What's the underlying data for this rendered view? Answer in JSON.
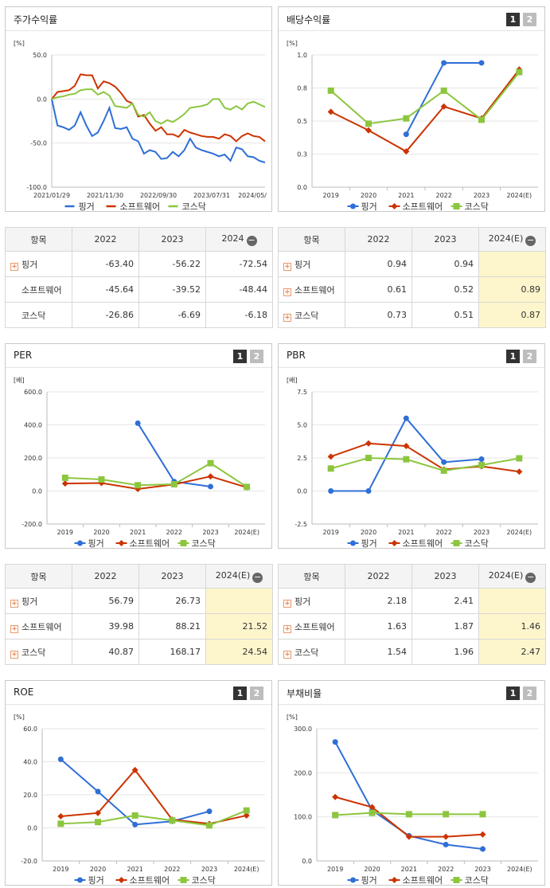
{
  "colors": {
    "pinger": "#2f6fd6",
    "software": "#cc3300",
    "kosdaq": "#8cc63f"
  },
  "stock": {
    "title": "주가수익률",
    "unit": "[%]",
    "legend": [
      "핑거",
      "소프트웨어",
      "코스닥"
    ],
    "chart_data": {
      "type": "line",
      "ylim": [
        -100,
        50
      ],
      "yticks": [
        "50.0",
        "0.0",
        "-50.0",
        "-100.0"
      ],
      "xticks": [
        "2021/01/29",
        "2021/11/30",
        "2022/09/30",
        "2023/07/31",
        "2024/05/"
      ],
      "series": [
        {
          "name": "핑거",
          "values": [
            0,
            -30,
            -32,
            -35,
            -30,
            -15,
            -30,
            -42,
            -38,
            -25,
            -10,
            -33,
            -34,
            -32,
            -45,
            -48,
            -62,
            -58,
            -60,
            -68,
            -67,
            -60,
            -65,
            -58,
            -45,
            -55,
            -58,
            -60,
            -62,
            -65,
            -63,
            -70,
            -55,
            -57,
            -65,
            -66,
            -70,
            -72
          ]
        },
        {
          "name": "소프트웨어",
          "values": [
            0,
            8,
            9,
            10,
            15,
            28,
            27,
            27,
            12,
            20,
            18,
            14,
            7,
            -2,
            -5,
            -20,
            -18,
            -28,
            -36,
            -32,
            -40,
            -40,
            -43,
            -35,
            -38,
            -40,
            -42,
            -43,
            -43,
            -45,
            -40,
            -42,
            -48,
            -42,
            -39,
            -42,
            -43,
            -48
          ]
        },
        {
          "name": "코스닥",
          "values": [
            0,
            2,
            3,
            5,
            6,
            10,
            11,
            11,
            5,
            8,
            4,
            -8,
            -9,
            -10,
            -5,
            -18,
            -20,
            -15,
            -25,
            -28,
            -24,
            -26,
            -22,
            -17,
            -10,
            -9,
            -8,
            -6,
            0,
            0,
            -10,
            -12,
            -8,
            -12,
            -5,
            -3,
            -6,
            -9
          ]
        }
      ]
    },
    "table": {
      "head": [
        "항목",
        "2022",
        "2023",
        "2024"
      ],
      "rows": [
        {
          "name": "핑거",
          "v": [
            "-63.40",
            "-56.22",
            "-72.54"
          ]
        },
        {
          "name": "소프트웨어",
          "v": [
            "-45.64",
            "-39.52",
            "-48.44"
          ]
        },
        {
          "name": "코스닥",
          "v": [
            "-26.86",
            "-6.69",
            "-6.18"
          ]
        }
      ]
    }
  },
  "dividend": {
    "title": "배당수익률",
    "unit": "[%]",
    "legend": [
      "핑거",
      "소프트웨어",
      "코스닥"
    ],
    "chart_data": {
      "type": "line",
      "categories": [
        "2019",
        "2020",
        "2021",
        "2022",
        "2023",
        "2024(E)"
      ],
      "ylim": [
        0,
        1
      ],
      "yticks": [
        "1.0",
        "0.8",
        "0.5",
        "0.3",
        "0.0"
      ],
      "series": [
        {
          "name": "핑거",
          "values": [
            null,
            null,
            0.4,
            0.94,
            0.94,
            null
          ]
        },
        {
          "name": "소프트웨어",
          "values": [
            0.57,
            0.43,
            0.27,
            0.61,
            0.52,
            0.89
          ]
        },
        {
          "name": "코스닥",
          "values": [
            0.73,
            0.48,
            0.52,
            0.73,
            0.51,
            0.87
          ]
        }
      ]
    },
    "table": {
      "head": [
        "항목",
        "2022",
        "2023",
        "2024(E)"
      ],
      "rows": [
        {
          "name": "핑거",
          "v": [
            "0.94",
            "0.94",
            ""
          ]
        },
        {
          "name": "소프트웨어",
          "v": [
            "0.61",
            "0.52",
            "0.89"
          ]
        },
        {
          "name": "코스닥",
          "v": [
            "0.73",
            "0.51",
            "0.87"
          ]
        }
      ]
    }
  },
  "per": {
    "title": "PER",
    "unit": "[배]",
    "legend": [
      "핑거",
      "소프트웨어",
      "코스닥"
    ],
    "chart_data": {
      "type": "line",
      "categories": [
        "2019",
        "2020",
        "2021",
        "2022",
        "2023",
        "2024(E)"
      ],
      "ylim": [
        -200,
        600
      ],
      "yticks": [
        "600.0",
        "400.0",
        "200.0",
        "0.0",
        "-200.0"
      ],
      "series": [
        {
          "name": "핑거",
          "values": [
            null,
            null,
            410,
            56.79,
            26.73,
            null
          ]
        },
        {
          "name": "소프트웨어",
          "values": [
            45,
            48,
            12,
            39.98,
            88.21,
            21.52
          ]
        },
        {
          "name": "코스닥",
          "values": [
            80,
            70,
            35,
            40.87,
            168.17,
            24.54
          ]
        }
      ]
    },
    "table": {
      "head": [
        "항목",
        "2022",
        "2023",
        "2024(E)"
      ],
      "rows": [
        {
          "name": "핑거",
          "v": [
            "56.79",
            "26.73",
            ""
          ]
        },
        {
          "name": "소프트웨어",
          "v": [
            "39.98",
            "88.21",
            "21.52"
          ]
        },
        {
          "name": "코스닥",
          "v": [
            "40.87",
            "168.17",
            "24.54"
          ]
        }
      ]
    }
  },
  "pbr": {
    "title": "PBR",
    "unit": "[배]",
    "legend": [
      "핑거",
      "소프트웨어",
      "코스닥"
    ],
    "chart_data": {
      "type": "line",
      "categories": [
        "2019",
        "2020",
        "2021",
        "2022",
        "2023",
        "2024(E)"
      ],
      "ylim": [
        -2.5,
        7.5
      ],
      "yticks": [
        "7.5",
        "5.0",
        "2.5",
        "0.0",
        "-2.5"
      ],
      "series": [
        {
          "name": "핑거",
          "values": [
            0,
            0,
            5.5,
            2.18,
            2.41,
            null
          ]
        },
        {
          "name": "소프트웨어",
          "values": [
            2.6,
            3.6,
            3.4,
            1.63,
            1.87,
            1.46
          ]
        },
        {
          "name": "코스닥",
          "values": [
            1.7,
            2.5,
            2.4,
            1.54,
            1.96,
            2.47
          ]
        }
      ]
    },
    "table": {
      "head": [
        "항목",
        "2022",
        "2023",
        "2024(E)"
      ],
      "rows": [
        {
          "name": "핑거",
          "v": [
            "2.18",
            "2.41",
            ""
          ]
        },
        {
          "name": "소프트웨어",
          "v": [
            "1.63",
            "1.87",
            "1.46"
          ]
        },
        {
          "name": "코스닥",
          "v": [
            "1.54",
            "1.96",
            "2.47"
          ]
        }
      ]
    }
  },
  "roe": {
    "title": "ROE",
    "unit": "[%]",
    "legend": [
      "핑거",
      "소프트웨어",
      "코스닥"
    ],
    "chart_data": {
      "type": "line",
      "categories": [
        "2019",
        "2020",
        "2021",
        "2022",
        "2023",
        "2024(E)"
      ],
      "ylim": [
        -20,
        60
      ],
      "yticks": [
        "60.0",
        "40.0",
        "20.0",
        "0.0",
        "-20.0"
      ],
      "series": [
        {
          "name": "핑거",
          "values": [
            41.5,
            22,
            2,
            4,
            10,
            null
          ]
        },
        {
          "name": "소프트웨어",
          "values": [
            7,
            9,
            35,
            5,
            2.5,
            7.5
          ]
        },
        {
          "name": "코스닥",
          "values": [
            2.5,
            3.5,
            7.5,
            4.5,
            1.5,
            10.5
          ]
        }
      ]
    }
  },
  "debt": {
    "title": "부채비율",
    "unit": "[%]",
    "legend": [
      "핑거",
      "소프트웨어",
      "코스닥"
    ],
    "chart_data": {
      "type": "line",
      "categories": [
        "2019",
        "2020",
        "2021",
        "2022",
        "2023",
        "2024(E)"
      ],
      "ylim": [
        0,
        300
      ],
      "yticks": [
        "300.0",
        "200.0",
        "100.0",
        "0.0"
      ],
      "series": [
        {
          "name": "핑거",
          "values": [
            270,
            115,
            57,
            37,
            27,
            null
          ]
        },
        {
          "name": "소프트웨어",
          "values": [
            145,
            122,
            55,
            55,
            60,
            null
          ]
        },
        {
          "name": "코스닥",
          "values": [
            104,
            109,
            106,
            106,
            106,
            null
          ]
        }
      ]
    }
  },
  "pager": {
    "p1": "1",
    "p2": "2"
  },
  "minus_glyph": "−"
}
